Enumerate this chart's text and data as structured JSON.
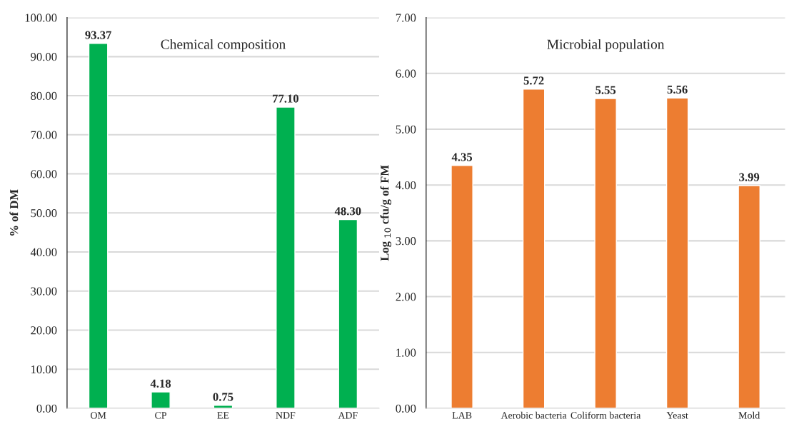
{
  "chart_data": [
    {
      "type": "bar",
      "title": "Chemical composition",
      "ylabel": "% of DM",
      "categories": [
        "OM",
        "CP",
        "EE",
        "NDF",
        "ADF"
      ],
      "values": [
        93.37,
        4.18,
        0.75,
        77.1,
        48.3
      ],
      "color": "#00b050",
      "value_labels": [
        "93.37",
        "4.18",
        "0.75",
        "77.10",
        "48.30"
      ],
      "ylim": [
        0,
        100
      ],
      "yticks": [
        {
          "value": 0,
          "label": "0.00"
        },
        {
          "value": 10,
          "label": "10.00"
        },
        {
          "value": 20,
          "label": "20.00"
        },
        {
          "value": 30,
          "label": "30.00"
        },
        {
          "value": 40,
          "label": "40.00"
        },
        {
          "value": 50,
          "label": "50.00"
        },
        {
          "value": 60,
          "label": "60.00"
        },
        {
          "value": 70,
          "label": "70.00"
        },
        {
          "value": 80,
          "label": "80.00"
        },
        {
          "value": 90,
          "label": "90.00"
        },
        {
          "value": 100,
          "label": "100.00"
        }
      ],
      "grid": "y",
      "legend": false
    },
    {
      "type": "bar",
      "title": "Microbial population",
      "ylabel": "Log $_{10}$ cfu/g of FM",
      "categories": [
        "LAB",
        "Aerobic bacteria",
        "Coliform bacteria",
        "Yeast",
        "Mold"
      ],
      "values": [
        4.35,
        5.72,
        5.55,
        5.56,
        3.99
      ],
      "color": "#ed7d31",
      "value_labels": [
        "4.35",
        "5.72",
        "5.55",
        "5.56",
        "3.99"
      ],
      "ylim": [
        0,
        7
      ],
      "yticks": [
        {
          "value": 0,
          "label": "0.00"
        },
        {
          "value": 1,
          "label": "1.00"
        },
        {
          "value": 2,
          "label": "2.00"
        },
        {
          "value": 3,
          "label": "3.00"
        },
        {
          "value": 4,
          "label": "4.00"
        },
        {
          "value": 5,
          "label": "5.00"
        },
        {
          "value": 6,
          "label": "6.00"
        },
        {
          "value": 7,
          "label": "7.00"
        }
      ],
      "grid": "y",
      "legend": false
    }
  ]
}
